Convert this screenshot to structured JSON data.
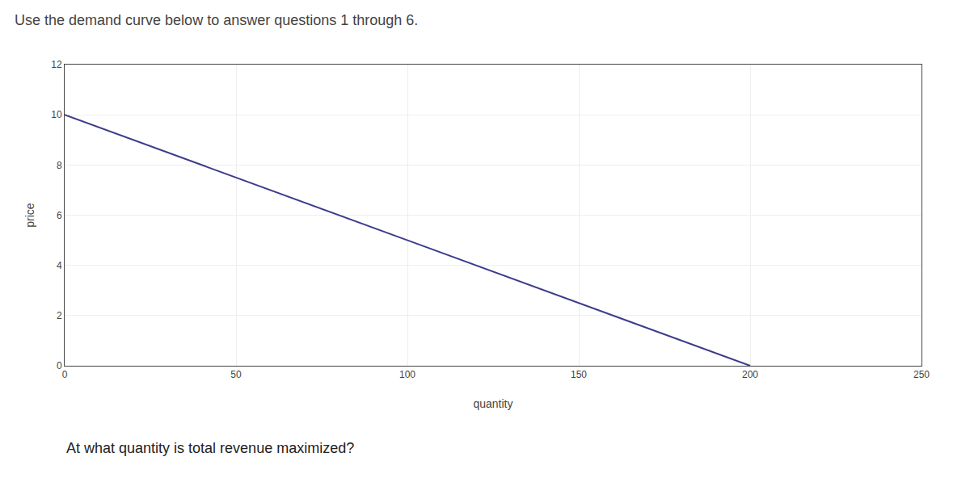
{
  "chart_data": {
    "type": "line",
    "title": "Use the demand curve below to answer questions 1 through 6.",
    "xlabel": "quantity",
    "ylabel": "price",
    "x": [
      0,
      200
    ],
    "values": [
      10,
      0
    ],
    "color": "#3c3c8c",
    "xlim": [
      0,
      250
    ],
    "ylim": [
      0,
      12
    ],
    "xticks": [
      0,
      50,
      100,
      150,
      200,
      250
    ],
    "yticks": [
      0,
      2,
      4,
      6,
      8,
      10,
      12
    ],
    "grid": true,
    "annotations": [
      "At what quantity is total revenue maximized?"
    ]
  }
}
